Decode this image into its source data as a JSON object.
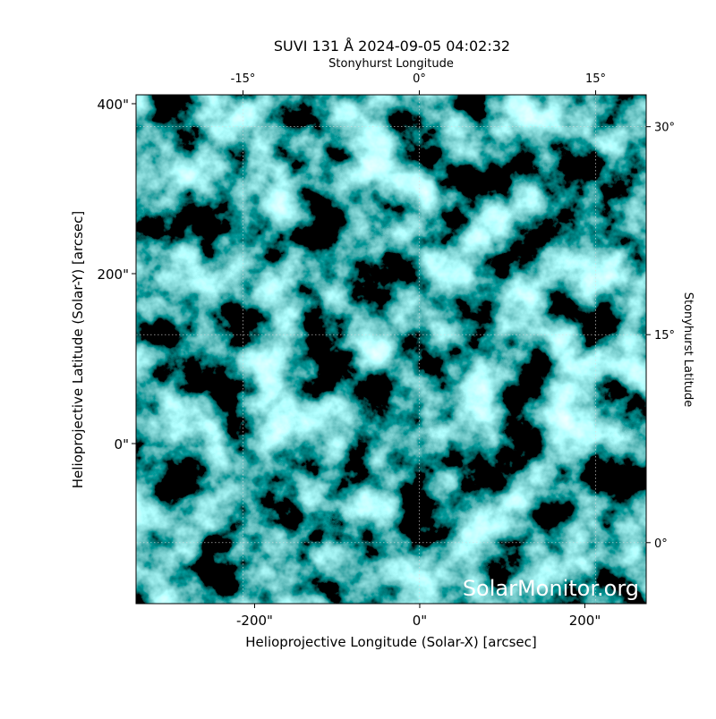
{
  "chart_data": {
    "type": "image",
    "title": "SUVI 131 Å 2024-09-05 04:02:32",
    "xlabel": "Helioprojective Longitude (Solar-X) [arcsec]",
    "ylabel": "Helioprojective Latitude (Solar-Y) [arcsec]",
    "x2label": "Stonyhurst Longitude",
    "y2label": "Stonyhurst Latitude",
    "watermark": "SolarMonitor.org",
    "xlim": [
      -343.6,
      274.3
    ],
    "xticks": [
      {
        "value": -200,
        "label": "-200\""
      },
      {
        "value": 0,
        "label": "0\""
      },
      {
        "value": 200,
        "label": "200\""
      }
    ],
    "ylim": [
      -188.4,
      410.5
    ],
    "yticks": [
      {
        "value": 0,
        "label": "0\""
      },
      {
        "value": 200,
        "label": "200\""
      },
      {
        "value": 400,
        "label": "400\""
      }
    ],
    "x2lim": [
      -24.1,
      19.3
    ],
    "x2ticks": [
      {
        "value": -15,
        "label": "-15°"
      },
      {
        "value": 0,
        "label": "0°"
      },
      {
        "value": 15,
        "label": "15°"
      }
    ],
    "y2lim": [
      -4.4,
      32.3
    ],
    "y2ticks": [
      {
        "value": 0,
        "label": "0°"
      },
      {
        "value": 15,
        "label": "15°"
      },
      {
        "value": 30,
        "label": "30°"
      }
    ],
    "grid": true
  }
}
